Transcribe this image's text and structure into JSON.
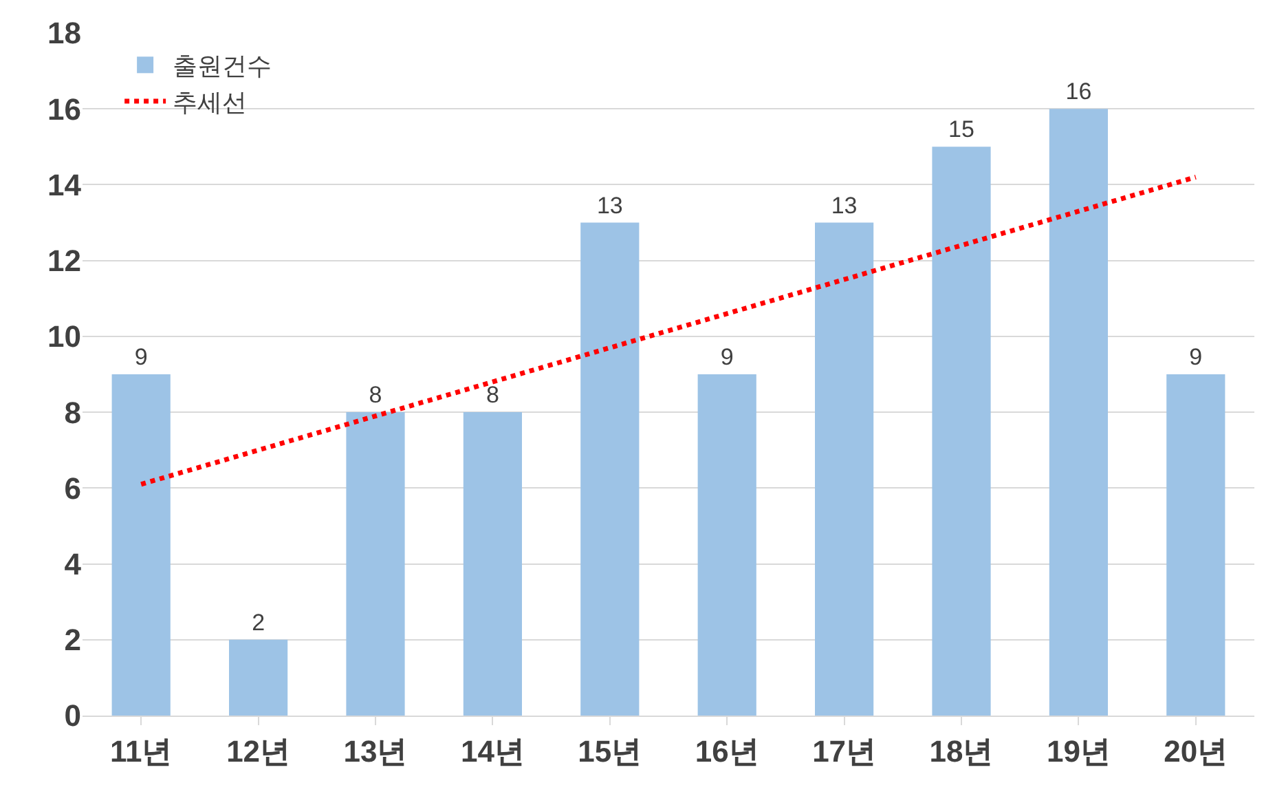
{
  "chart_data": {
    "type": "bar",
    "categories": [
      "11년",
      "12년",
      "13년",
      "14년",
      "15년",
      "16년",
      "17년",
      "18년",
      "19년",
      "20년"
    ],
    "series": [
      {
        "name": "출원건수",
        "color": "#9dc3e6",
        "values": [
          9,
          2,
          8,
          8,
          13,
          9,
          13,
          15,
          16,
          9
        ],
        "value_labels": [
          "9",
          "2",
          "8",
          "8",
          "13",
          "9",
          "13",
          "15",
          "16",
          "9"
        ]
      },
      {
        "name": "추세선",
        "type": "line",
        "color": "#ff0000",
        "line_style": "dotted",
        "marker": "none",
        "x": [
          "11년",
          "20년"
        ],
        "values": [
          6.1,
          14.2
        ]
      }
    ],
    "ylim": [
      0,
      18
    ],
    "yticks": [
      0,
      2,
      4,
      6,
      8,
      10,
      12,
      14,
      16,
      18
    ],
    "grid": "y",
    "legend": "top left"
  }
}
